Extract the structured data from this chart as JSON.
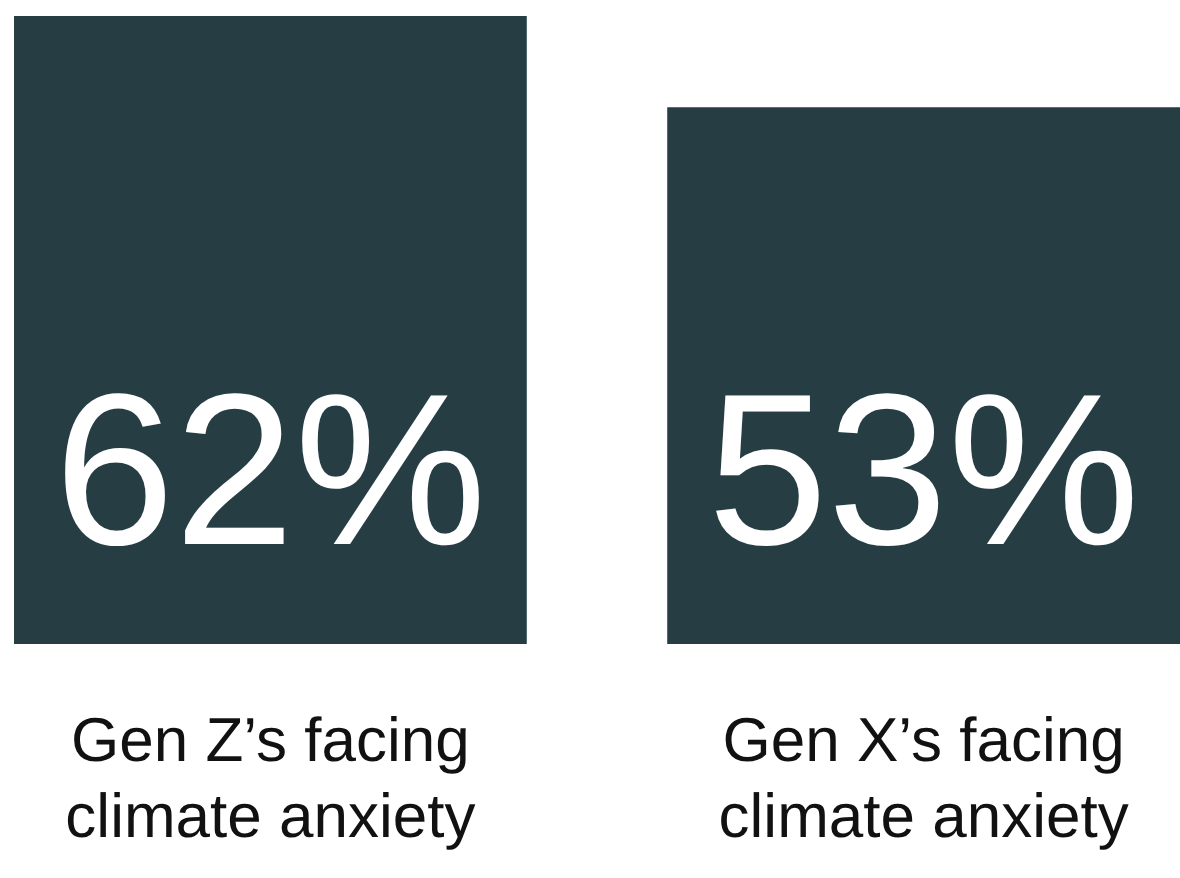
{
  "chart_data": {
    "type": "bar",
    "categories": [
      "Gen Z’s facing\nclimate anxiety",
      "Gen X’s facing\nclimate anxiety"
    ],
    "values": [
      62,
      53
    ],
    "value_labels": [
      "62%",
      "53%"
    ],
    "color": "#253d43",
    "tick_labels": "x"
  }
}
